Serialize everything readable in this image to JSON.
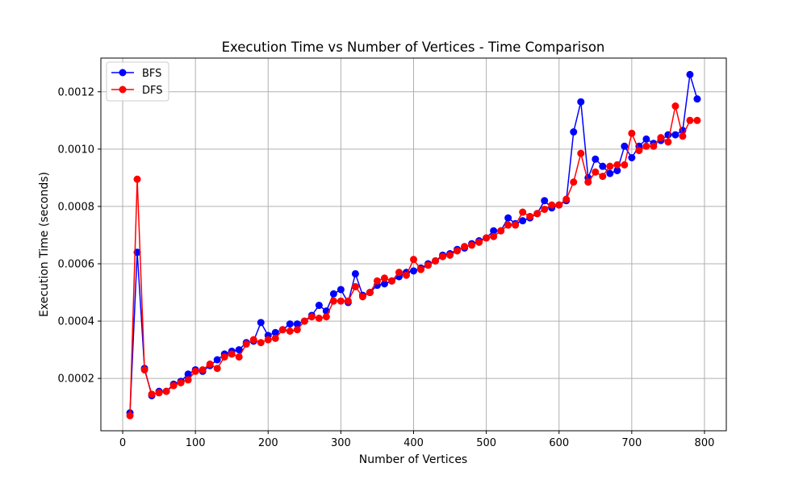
{
  "chart_data": {
    "type": "line",
    "title": "Execution Time vs Number of Vertices - Time Comparison",
    "xlabel": "Number of Vertices",
    "ylabel": "Execution Time (seconds)",
    "xlim": [
      -30,
      830
    ],
    "ylim": [
      1.75e-05,
      0.0013175
    ],
    "xticks": [
      0,
      100,
      200,
      300,
      400,
      500,
      600,
      700,
      800
    ],
    "xtick_labels": [
      "0",
      "100",
      "200",
      "300",
      "400",
      "500",
      "600",
      "700",
      "800"
    ],
    "yticks": [
      0.0002,
      0.0004,
      0.0006,
      0.0008,
      0.001,
      0.0012
    ],
    "ytick_labels": [
      "0.0002",
      "0.0004",
      "0.0006",
      "0.0008",
      "0.0010",
      "0.0012"
    ],
    "grid": true,
    "legend_position": "top-left",
    "x": [
      10,
      20,
      30,
      40,
      50,
      60,
      70,
      80,
      90,
      100,
      110,
      120,
      130,
      140,
      150,
      160,
      170,
      180,
      190,
      200,
      210,
      220,
      230,
      240,
      250,
      260,
      270,
      280,
      290,
      300,
      310,
      320,
      330,
      340,
      350,
      360,
      370,
      380,
      390,
      400,
      410,
      420,
      430,
      440,
      450,
      460,
      470,
      480,
      490,
      500,
      510,
      520,
      530,
      540,
      550,
      560,
      570,
      580,
      590,
      600,
      610,
      620,
      630,
      640,
      650,
      660,
      670,
      680,
      690,
      700,
      710,
      720,
      730,
      740,
      750,
      760,
      770,
      780,
      790
    ],
    "series": [
      {
        "name": "BFS",
        "color": "#0000ff",
        "values": [
          8e-05,
          0.00064,
          0.000235,
          0.00014,
          0.000155,
          0.000155,
          0.00018,
          0.00019,
          0.000215,
          0.00023,
          0.000225,
          0.000245,
          0.000265,
          0.000285,
          0.000295,
          0.0003,
          0.000325,
          0.00033,
          0.000395,
          0.00035,
          0.00036,
          0.00037,
          0.00039,
          0.00039,
          0.0004,
          0.00042,
          0.000455,
          0.000435,
          0.000495,
          0.00051,
          0.000465,
          0.000565,
          0.00049,
          0.0005,
          0.000525,
          0.00053,
          0.00054,
          0.000555,
          0.00057,
          0.000575,
          0.000585,
          0.0006,
          0.00061,
          0.00063,
          0.000635,
          0.00065,
          0.000655,
          0.00067,
          0.00068,
          0.00069,
          0.000715,
          0.000715,
          0.00076,
          0.00074,
          0.00075,
          0.00076,
          0.000775,
          0.00082,
          0.000795,
          0.000805,
          0.00082,
          0.00106,
          0.001165,
          0.0009,
          0.000965,
          0.00094,
          0.000915,
          0.000925,
          0.00101,
          0.00097,
          0.00101,
          0.001035,
          0.00102,
          0.00103,
          0.00105,
          0.00105,
          0.001065,
          0.00126,
          0.001175
        ]
      },
      {
        "name": "DFS",
        "color": "#ff0000",
        "values": [
          7e-05,
          0.000895,
          0.00023,
          0.000145,
          0.00015,
          0.000155,
          0.000175,
          0.000185,
          0.000195,
          0.000225,
          0.00023,
          0.00025,
          0.000235,
          0.000275,
          0.000285,
          0.000275,
          0.00032,
          0.000335,
          0.000325,
          0.000335,
          0.00034,
          0.00037,
          0.000365,
          0.00037,
          0.0004,
          0.000415,
          0.00041,
          0.000415,
          0.00047,
          0.00047,
          0.00047,
          0.00052,
          0.000485,
          0.0005,
          0.00054,
          0.00055,
          0.00054,
          0.00057,
          0.00056,
          0.000615,
          0.00058,
          0.000595,
          0.00061,
          0.000625,
          0.00063,
          0.000645,
          0.00066,
          0.000665,
          0.000675,
          0.00069,
          0.000695,
          0.000715,
          0.000735,
          0.000735,
          0.00078,
          0.000765,
          0.000775,
          0.00079,
          0.000805,
          0.000805,
          0.000825,
          0.000885,
          0.000985,
          0.000885,
          0.00092,
          0.000905,
          0.00094,
          0.000945,
          0.000945,
          0.001055,
          0.000995,
          0.00101,
          0.00101,
          0.00104,
          0.001025,
          0.00115,
          0.001045,
          0.0011,
          0.0011
        ]
      }
    ]
  }
}
